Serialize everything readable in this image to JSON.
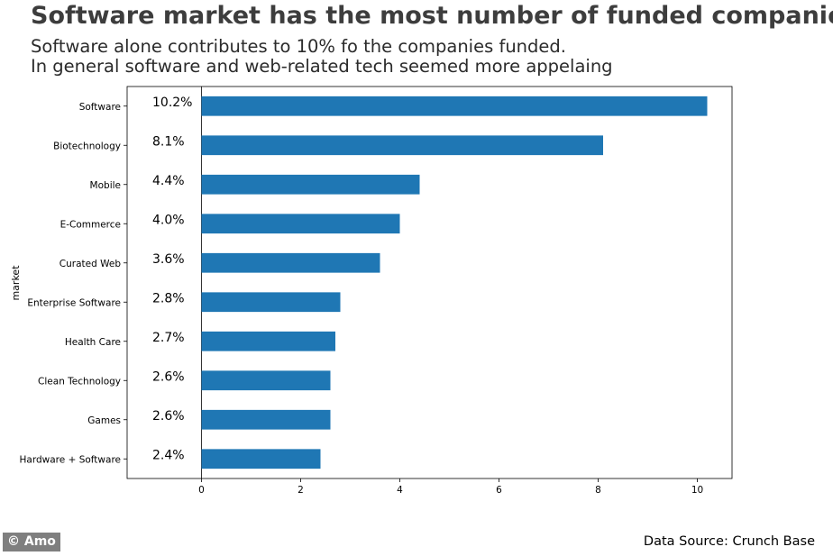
{
  "header": {
    "title": "Software market has the most number of funded companies",
    "subtitle_line1": "Software alone contributes to 10% fo the companies funded.",
    "subtitle_line2": "In general software and web-related tech seemed more appelaing"
  },
  "footer": {
    "credit": "© Amo",
    "source": "Data Source: Crunch Base"
  },
  "colors": {
    "bar": "#1f77b4",
    "title": "#3d3d3d",
    "credit_bg": "#7f7f7f"
  },
  "chart_data": {
    "type": "bar",
    "orientation": "horizontal",
    "categories": [
      "Software",
      "Biotechnology",
      "Mobile",
      "E-Commerce",
      "Curated Web",
      "Enterprise Software",
      "Health Care",
      "Clean Technology",
      "Games",
      "Hardware + Software"
    ],
    "values": [
      10.2,
      8.1,
      4.4,
      4.0,
      3.6,
      2.8,
      2.7,
      2.6,
      2.6,
      2.4
    ],
    "data_labels": [
      "10.2%",
      "8.1%",
      "4.4%",
      "4.0%",
      "3.6%",
      "2.8%",
      "2.7%",
      "2.6%",
      "2.6%",
      "2.4%"
    ],
    "xticks": [
      0,
      2,
      4,
      6,
      8,
      10
    ],
    "xlim": [
      -1.5,
      10.7
    ],
    "xlabel": "",
    "ylabel": "market",
    "grid": false,
    "legend": "none"
  }
}
